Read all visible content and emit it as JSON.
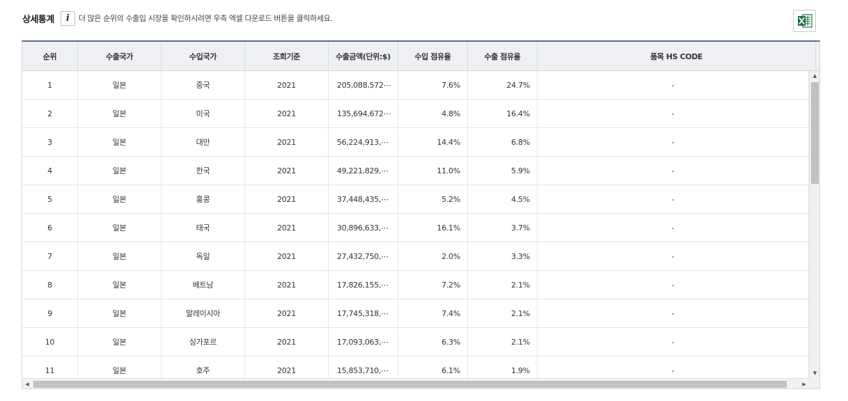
{
  "header": {
    "title": "상세통계",
    "info_icon_glyph": "i",
    "info_text": "더 많은 순위의 수출입 시장을 확인하시려면 우측 엑셀 다운로드 버튼을 클릭하세요.",
    "excel_icon": "excel-icon"
  },
  "table": {
    "columns": [
      "순위",
      "수출국가",
      "수입국가",
      "조회기준",
      "수출금액(단위:$)",
      "수입 점유율",
      "수출 점유율",
      "품목 HS CODE"
    ],
    "rows": [
      {
        "rank": "1",
        "exporter": "일본",
        "importer": "중국",
        "year": "2021",
        "amount": "205,088,572⋯",
        "import_share": "7.6%",
        "export_share": "24.7%",
        "hs_code": "-"
      },
      {
        "rank": "2",
        "exporter": "일본",
        "importer": "미국",
        "year": "2021",
        "amount": "135,694,672⋯",
        "import_share": "4.8%",
        "export_share": "16.4%",
        "hs_code": "-"
      },
      {
        "rank": "3",
        "exporter": "일본",
        "importer": "대만",
        "year": "2021",
        "amount": "56,224,913,⋯",
        "import_share": "14.4%",
        "export_share": "6.8%",
        "hs_code": "-"
      },
      {
        "rank": "4",
        "exporter": "일본",
        "importer": "한국",
        "year": "2021",
        "amount": "49,221,829,⋯",
        "import_share": "11.0%",
        "export_share": "5.9%",
        "hs_code": "-"
      },
      {
        "rank": "5",
        "exporter": "일본",
        "importer": "홍콩",
        "year": "2021",
        "amount": "37,448,435,⋯",
        "import_share": "5.2%",
        "export_share": "4.5%",
        "hs_code": "-"
      },
      {
        "rank": "6",
        "exporter": "일본",
        "importer": "태국",
        "year": "2021",
        "amount": "30,896,633,⋯",
        "import_share": "16.1%",
        "export_share": "3.7%",
        "hs_code": "-"
      },
      {
        "rank": "7",
        "exporter": "일본",
        "importer": "독일",
        "year": "2021",
        "amount": "27,432,750,⋯",
        "import_share": "2.0%",
        "export_share": "3.3%",
        "hs_code": "-"
      },
      {
        "rank": "8",
        "exporter": "일본",
        "importer": "베트남",
        "year": "2021",
        "amount": "17,826,155,⋯",
        "import_share": "7.2%",
        "export_share": "2.1%",
        "hs_code": "-"
      },
      {
        "rank": "9",
        "exporter": "일본",
        "importer": "말레이시아",
        "year": "2021",
        "amount": "17,745,318,⋯",
        "import_share": "7.4%",
        "export_share": "2.1%",
        "hs_code": "-"
      },
      {
        "rank": "10",
        "exporter": "일본",
        "importer": "싱가포르",
        "year": "2021",
        "amount": "17,093,063,⋯",
        "import_share": "6.3%",
        "export_share": "2.1%",
        "hs_code": "-"
      },
      {
        "rank": "11",
        "exporter": "일본",
        "importer": "호주",
        "year": "2021",
        "amount": "15,853,710,⋯",
        "import_share": "6.1%",
        "export_share": "1.9%",
        "hs_code": "-"
      }
    ]
  },
  "scrollbars": {
    "up_glyph": "▲",
    "down_glyph": "▼",
    "left_glyph": "◀",
    "right_glyph": "▶"
  },
  "colors": {
    "excel_green": "#1e7145",
    "header_bg": "#eef0f4",
    "header_rule": "#5b6b8c"
  }
}
